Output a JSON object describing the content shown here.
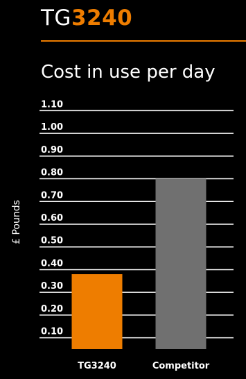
{
  "header": {
    "title_prefix": "TG",
    "title_number": "3240",
    "accent_color": "#ee7d00"
  },
  "chart_data": {
    "type": "bar",
    "title": "Cost in use per day",
    "ylabel": "£ Pounds",
    "xlabel": "",
    "categories": [
      "TG3240",
      "Competitor"
    ],
    "values": [
      0.38,
      0.8
    ],
    "colors": [
      "#ee7d00",
      "#707070"
    ],
    "ylim": [
      0.05,
      1.15
    ],
    "yticks": [
      "0.10",
      "0.20",
      "0.30",
      "0.40",
      "0.50",
      "0.60",
      "0.70",
      "0.80",
      "0.90",
      "1.00",
      "1.10"
    ],
    "grid": true
  }
}
